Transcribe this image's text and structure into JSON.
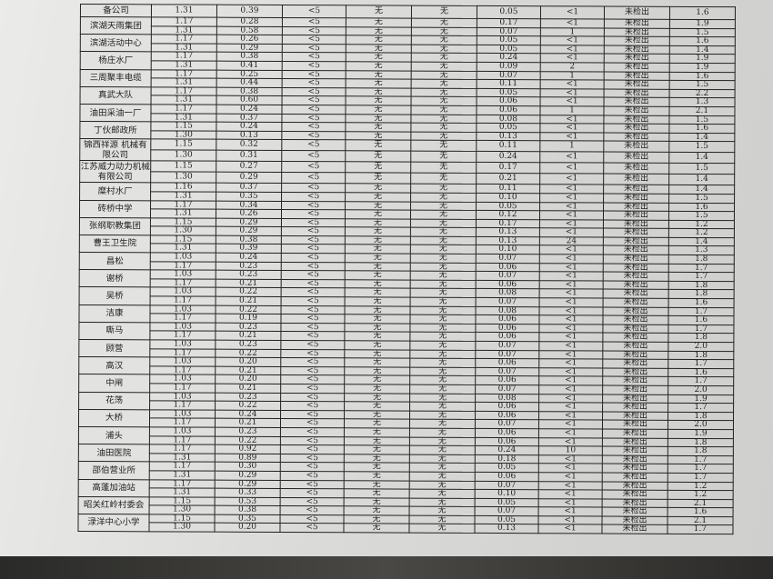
{
  "groups": [
    {
      "name": "备公司",
      "rows": [
        [
          "1.31",
          "0.39",
          "<5",
          "无",
          "无",
          "0.05",
          "<1",
          "未检出",
          "1.6"
        ]
      ]
    },
    {
      "name": "滨湖天雨集团",
      "rows": [
        [
          "1.17",
          "0.28",
          "<5",
          "无",
          "无",
          "0.17",
          "<1",
          "未检出",
          "1.9"
        ],
        [
          "1.31",
          "0.58",
          "<5",
          "无",
          "无",
          "0.07",
          "1",
          "未检出",
          "1.5"
        ]
      ]
    },
    {
      "name": "滨湖活动中心",
      "rows": [
        [
          "1.17",
          "0.26",
          "<5",
          "无",
          "无",
          "0.05",
          "<1",
          "未检出",
          "1.6"
        ],
        [
          "1.31",
          "0.29",
          "<5",
          "无",
          "无",
          "0.05",
          "<1",
          "未检出",
          "1.4"
        ]
      ]
    },
    {
      "name": "杨庄水厂",
      "rows": [
        [
          "1.17",
          "0.38",
          "<5",
          "无",
          "无",
          "0.24",
          "<1",
          "未检出",
          "1.9"
        ],
        [
          "1.31",
          "0.41",
          "<5",
          "无",
          "无",
          "0.09",
          "2",
          "未检出",
          "1.9"
        ]
      ]
    },
    {
      "name": "三周聚丰电缆",
      "rows": [
        [
          "1.17",
          "0.25",
          "<5",
          "无",
          "无",
          "0.07",
          "1",
          "未检出",
          "1.6"
        ],
        [
          "1.31",
          "0.44",
          "<5",
          "无",
          "无",
          "0.11",
          "<1",
          "未检出",
          "1.5"
        ]
      ]
    },
    {
      "name": "真武大队",
      "rows": [
        [
          "1.17",
          "0.38",
          "<5",
          "无",
          "无",
          "0.05",
          "<1",
          "未检出",
          "2.2"
        ],
        [
          "1.31",
          "0.60",
          "<5",
          "无",
          "无",
          "0.06",
          "<1",
          "未检出",
          "1.3"
        ]
      ]
    },
    {
      "name": "油田采油一厂",
      "rows": [
        [
          "1.17",
          "0.24",
          "<5",
          "无",
          "无",
          "0.06",
          "1",
          "未检出",
          "2.1"
        ],
        [
          "1.31",
          "0.37",
          "<5",
          "无",
          "无",
          "0.08",
          "<1",
          "未检出",
          "1.5"
        ]
      ]
    },
    {
      "name": "丁伙邮政所",
      "rows": [
        [
          "1.15",
          "0.24",
          "<5",
          "无",
          "无",
          "0.05",
          "<1",
          "未检出",
          "1.6"
        ],
        [
          "1.30",
          "0.13",
          "<5",
          "无",
          "无",
          "0.13",
          "<1",
          "未检出",
          "1.4"
        ]
      ]
    },
    {
      "name": "锦西祥源 机械有限公司",
      "tall": true,
      "rows": [
        [
          "1.15",
          "0.32",
          "<5",
          "无",
          "无",
          "0.11",
          "1",
          "未检出",
          "1.5"
        ],
        [
          "1.30",
          "0.31",
          "<5",
          "无",
          "无",
          "0.24",
          "<1",
          "未检出",
          "1.4"
        ]
      ]
    },
    {
      "name": "江苏威力动力机械有限公司",
      "tall": true,
      "rows": [
        [
          "1.15",
          "0.27",
          "<5",
          "无",
          "无",
          "0.17",
          "<1",
          "未检出",
          "1.5"
        ],
        [
          "1.30",
          "0.29",
          "<5",
          "无",
          "无",
          "0.21",
          "<1",
          "未检出",
          "1.4"
        ]
      ]
    },
    {
      "name": "糜村水厂",
      "rows": [
        [
          "1.16",
          "0.37",
          "<5",
          "无",
          "无",
          "0.11",
          "<1",
          "未检出",
          "1.4"
        ],
        [
          "1.31",
          "0.35",
          "<5",
          "无",
          "无",
          "0.10",
          "<1",
          "未检出",
          "1.5"
        ]
      ]
    },
    {
      "name": "砖桥中学",
      "rows": [
        [
          "1.17",
          "0.34",
          "<5",
          "无",
          "无",
          "0.05",
          "<1",
          "未检出",
          "1.6"
        ],
        [
          "1.31",
          "0.26",
          "<5",
          "无",
          "无",
          "0.12",
          "<1",
          "未检出",
          "1.5"
        ]
      ]
    },
    {
      "name": "张纲职教集团",
      "rows": [
        [
          "1.15",
          "0.29",
          "<5",
          "无",
          "无",
          "0.17",
          "<1",
          "未检出",
          "1.2"
        ],
        [
          "1.30",
          "0.29",
          "<5",
          "无",
          "无",
          "0.13",
          "<1",
          "未检出",
          "1.2"
        ]
      ]
    },
    {
      "name": "曹王卫生院",
      "rows": [
        [
          "1.15",
          "0.38",
          "<5",
          "无",
          "无",
          "0.13",
          "24",
          "未检出",
          "1.4"
        ],
        [
          "1.31",
          "0.39",
          "<5",
          "无",
          "无",
          "0.10",
          "<1",
          "未检出",
          "1.3"
        ]
      ]
    },
    {
      "name": "昌松",
      "rows": [
        [
          "1.03",
          "0.24",
          "<5",
          "无",
          "无",
          "0.07",
          "<1",
          "未检出",
          "1.8"
        ],
        [
          "1.17",
          "0.23",
          "<5",
          "无",
          "无",
          "0.06",
          "<1",
          "未检出",
          "1.7"
        ]
      ]
    },
    {
      "name": "谢桥",
      "rows": [
        [
          "1.03",
          "0.23",
          "<5",
          "无",
          "无",
          "0.07",
          "<1",
          "未检出",
          "1.7"
        ],
        [
          "1.17",
          "0.21",
          "<5",
          "无",
          "无",
          "0.06",
          "<1",
          "未检出",
          "1.8"
        ]
      ]
    },
    {
      "name": "吴桥",
      "rows": [
        [
          "1.03",
          "0.22",
          "<5",
          "无",
          "无",
          "0.08",
          "<1",
          "未检出",
          "1.8"
        ],
        [
          "1.17",
          "0.21",
          "<5",
          "无",
          "无",
          "0.07",
          "<1",
          "未检出",
          "1.6"
        ]
      ]
    },
    {
      "name": "洁康",
      "rows": [
        [
          "1.03",
          "0.22",
          "<5",
          "无",
          "无",
          "0.08",
          "<1",
          "未检出",
          "1.7"
        ],
        [
          "1.17",
          "0.19",
          "<5",
          "无",
          "无",
          "0.06",
          "<1",
          "未检出",
          "1.6"
        ]
      ]
    },
    {
      "name": "嘶马",
      "rows": [
        [
          "1.03",
          "0.23",
          "<5",
          "无",
          "无",
          "0.06",
          "<1",
          "未检出",
          "1.7"
        ],
        [
          "1.17",
          "0.21",
          "<5",
          "无",
          "无",
          "0.06",
          "<1",
          "未检出",
          "1.8"
        ]
      ]
    },
    {
      "name": "顾营",
      "rows": [
        [
          "1.03",
          "0.23",
          "<5",
          "无",
          "无",
          "0.07",
          "<1",
          "未检出",
          "2.0"
        ],
        [
          "1.17",
          "0.22",
          "<5",
          "无",
          "无",
          "0.07",
          "<1",
          "未检出",
          "1.8"
        ]
      ]
    },
    {
      "name": "高汉",
      "rows": [
        [
          "1.03",
          "0.20",
          "<5",
          "无",
          "无",
          "0.06",
          "<1",
          "未检出",
          "1.7"
        ],
        [
          "1.17",
          "0.21",
          "<5",
          "无",
          "无",
          "0.07",
          "<1",
          "未检出",
          "1.6"
        ]
      ]
    },
    {
      "name": "中闸",
      "rows": [
        [
          "1.03",
          "0.20",
          "<5",
          "无",
          "无",
          "0.06",
          "<1",
          "未检出",
          "1.7"
        ],
        [
          "1.17",
          "0.21",
          "<5",
          "无",
          "无",
          "0.07",
          "<1",
          "未检出",
          "2.0"
        ]
      ]
    },
    {
      "name": "花荡",
      "rows": [
        [
          "1.03",
          "0.23",
          "<5",
          "无",
          "无",
          "0.08",
          "<1",
          "未检出",
          "1.9"
        ],
        [
          "1.17",
          "0.22",
          "<5",
          "无",
          "无",
          "0.06",
          "<1",
          "未检出",
          "1.7"
        ]
      ]
    },
    {
      "name": "大桥",
      "rows": [
        [
          "1.03",
          "0.24",
          "<5",
          "无",
          "无",
          "0.06",
          "<1",
          "未检出",
          "1.8"
        ],
        [
          "1.17",
          "0.21",
          "<5",
          "无",
          "无",
          "0.07",
          "<1",
          "未检出",
          "2.0"
        ]
      ]
    },
    {
      "name": "浦头",
      "rows": [
        [
          "1.03",
          "0.23",
          "<5",
          "无",
          "无",
          "0.06",
          "<1",
          "未检出",
          "1.9"
        ],
        [
          "1.17",
          "0.22",
          "<5",
          "无",
          "无",
          "0.06",
          "<1",
          "未检出",
          "1.8"
        ]
      ]
    },
    {
      "name": "油田医院",
      "rows": [
        [
          "1.17",
          "0.92",
          "<5",
          "无",
          "无",
          "0.24",
          "10",
          "未检出",
          "1.8"
        ],
        [
          "1.31",
          "0.89",
          "<5",
          "无",
          "无",
          "0.18",
          "<1",
          "未检出",
          "1.7"
        ]
      ]
    },
    {
      "name": "邵伯营业所",
      "rows": [
        [
          "1.17",
          "0.30",
          "<5",
          "无",
          "无",
          "0.05",
          "<1",
          "未检出",
          "1.7"
        ],
        [
          "1.31",
          "0.29",
          "<5",
          "无",
          "无",
          "0.06",
          "<1",
          "未检出",
          "1.7"
        ]
      ]
    },
    {
      "name": "高蓬加油站",
      "rows": [
        [
          "1.17",
          "0.29",
          "<5",
          "无",
          "无",
          "0.07",
          "<1",
          "未检出",
          "1.2"
        ],
        [
          "1.31",
          "0.33",
          "<5",
          "无",
          "无",
          "0.10",
          "<1",
          "未检出",
          "1.2"
        ]
      ]
    },
    {
      "name": "昭关红岭村委会",
      "rows": [
        [
          "1.15",
          "0.53",
          "<5",
          "无",
          "无",
          "0.05",
          "<1",
          "未检出",
          "2.1"
        ],
        [
          "1.30",
          "0.38",
          "<5",
          "无",
          "无",
          "0.07",
          "<1",
          "未检出",
          "1.6"
        ]
      ]
    },
    {
      "name": "渌洋中心小学",
      "rows": [
        [
          "1.15",
          "0.35",
          "<5",
          "无",
          "无",
          "0.05",
          "<1",
          "未检出",
          "2.1"
        ],
        [
          "1.30",
          "0.20",
          "<5",
          "无",
          "无",
          "0.13",
          "<1",
          "未检出",
          "1.7"
        ]
      ]
    }
  ]
}
